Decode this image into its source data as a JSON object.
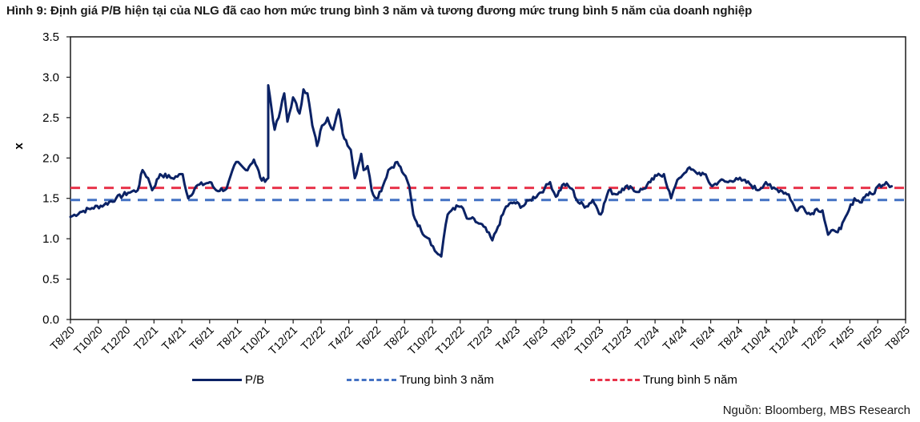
{
  "title": "Hình 9: Định giá P/B hiện tại của NLG đã cao hơn mức trung bình 3 năm và tương đương mức trung bình 5 năm của doanh nghiệp",
  "source": "Nguồn: Bloomberg, MBS Research",
  "colors": {
    "pb": "#0b2265",
    "avg3": "#4472c4",
    "avg5": "#e8334a",
    "axis": "#000000"
  },
  "chart_data": {
    "type": "line",
    "title": "Hình 9: Định giá P/B hiện tại của NLG đã cao hơn mức trung bình 3 năm và tương đương mức trung bình 5 năm của doanh nghiệp",
    "xlabel": "",
    "ylabel": "x",
    "ylim": [
      0,
      3.5
    ],
    "yticks": [
      "0.0",
      "0.5",
      "1.0",
      "1.5",
      "2.0",
      "2.5",
      "3.0",
      "3.5"
    ],
    "ytick_values": [
      0,
      0.5,
      1.0,
      1.5,
      2.0,
      2.5,
      3.0,
      3.5
    ],
    "xlim_months": [
      0,
      60
    ],
    "xticks": [
      "T8/20",
      "T10/20",
      "T12/20",
      "T2/21",
      "T4/21",
      "T6/21",
      "T8/21",
      "T10/21",
      "T12/21",
      "T2/22",
      "T4/22",
      "T6/22",
      "T8/22",
      "T10/22",
      "T12/22",
      "T2/23",
      "T4/23",
      "T6/23",
      "T8/23",
      "T10/23",
      "T12/23",
      "T2/24",
      "T4/24",
      "T6/24",
      "T8/24",
      "T10/24",
      "T12/24",
      "T2/25",
      "T4/25",
      "T6/25",
      "T8/25"
    ],
    "grid": false,
    "legend_position": "bottom",
    "series": [
      {
        "name": "P/B",
        "style": "solid",
        "x_months": [
          0,
          0.69,
          1.55,
          2.42,
          3.28,
          4.14,
          4.83,
          5.18,
          5.58,
          5.87,
          6.44,
          7.31,
          8.06,
          8.46,
          9.03,
          10.01,
          10.47,
          11.22,
          11.91,
          12.6,
          13.18,
          13.75,
          14.21,
          14.21,
          14.21,
          14.67,
          14.96,
          15.36,
          15.59,
          15.99,
          16.46,
          16.74,
          17.03,
          17.38,
          17.72,
          18.07,
          18.47,
          18.87,
          19.27,
          19.56,
          20.14,
          20.43,
          20.89,
          21.06,
          21.35,
          21.64,
          21.98,
          22.44,
          22.84,
          23.48,
          23.94,
          24.34,
          24.63,
          25.2,
          25.78,
          26.18,
          26.64,
          26.81,
          27.1,
          27.5,
          28.08,
          28.48,
          28.77,
          29.23,
          29.69,
          30.31,
          30.72,
          31.3,
          31.87,
          32.45,
          33.02,
          33.6,
          34.06,
          34.46,
          34.87,
          35.44,
          36.02,
          36.48,
          37.06,
          37.52,
          38.1,
          38.67,
          39.19,
          39.65,
          40.22,
          40.63,
          41.2,
          41.66,
          42.12,
          42.64,
          43.15,
          43.33,
          43.73,
          44.36,
          44.94,
          45.52,
          46.1,
          46.67,
          47.25,
          47.83,
          48.23,
          48.8,
          49.38,
          49.96,
          50.4,
          51.02,
          51.6,
          52.12,
          52.58,
          53.16,
          53.62,
          54.03,
          54.43,
          54.89,
          55.35,
          55.92,
          56.33,
          56.73,
          57.19,
          57.65,
          58.0,
          58.6,
          59.0
        ],
        "values": [
          1.27,
          1.33,
          1.38,
          1.42,
          1.5,
          1.57,
          1.6,
          1.85,
          1.75,
          1.6,
          1.8,
          1.75,
          1.8,
          1.5,
          1.65,
          1.7,
          1.6,
          1.62,
          1.95,
          1.85,
          1.98,
          1.72,
          1.75,
          2.3,
          2.9,
          2.35,
          2.5,
          2.8,
          2.45,
          2.75,
          2.55,
          2.85,
          2.8,
          2.4,
          2.15,
          2.4,
          2.5,
          2.35,
          2.6,
          2.3,
          2.1,
          1.75,
          2.05,
          1.85,
          1.9,
          1.6,
          1.5,
          1.65,
          1.85,
          1.95,
          1.8,
          1.65,
          1.3,
          1.1,
          1.0,
          0.85,
          0.78,
          1.0,
          1.3,
          1.38,
          1.4,
          1.25,
          1.25,
          1.2,
          1.15,
          0.98,
          1.15,
          1.4,
          1.45,
          1.4,
          1.48,
          1.55,
          1.62,
          1.7,
          1.52,
          1.68,
          1.62,
          1.45,
          1.4,
          1.48,
          1.3,
          1.6,
          1.55,
          1.62,
          1.65,
          1.58,
          1.62,
          1.7,
          1.78,
          1.8,
          1.5,
          1.6,
          1.75,
          1.87,
          1.82,
          1.8,
          1.65,
          1.72,
          1.7,
          1.75,
          1.72,
          1.68,
          1.6,
          1.7,
          1.62,
          1.6,
          1.55,
          1.35,
          1.4,
          1.3,
          1.37,
          1.35,
          1.05,
          1.1,
          1.12,
          1.35,
          1.5,
          1.45,
          1.55,
          1.55,
          1.65,
          1.7,
          1.65
        ]
      },
      {
        "name": "Trung bình 3 năm",
        "style": "dashed",
        "value": 1.48
      },
      {
        "name": "Trung bình 5 năm",
        "style": "dashed",
        "value": 1.63
      }
    ]
  }
}
